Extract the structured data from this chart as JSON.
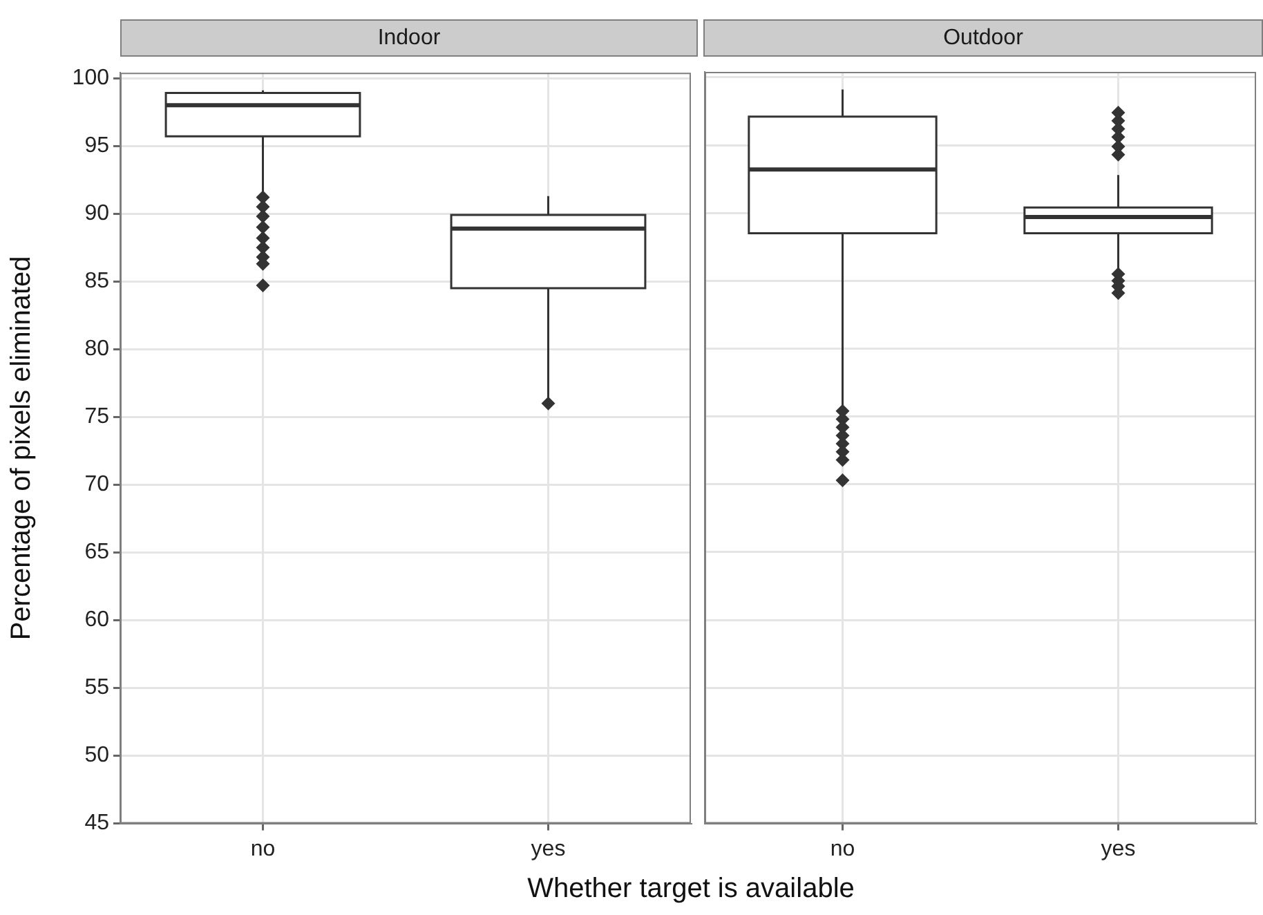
{
  "chart_data": [
    {
      "type": "box",
      "title": "Indoor",
      "xlabel": "Whether target is available",
      "ylabel": "Percentage of pixels eliminated",
      "categories": [
        "no",
        "yes"
      ],
      "boxes": [
        {
          "low": 91.3,
          "q1": 95.7,
          "median": 98.0,
          "q3": 98.9,
          "high": 99.1,
          "outliers": [
            91.2,
            90.5,
            89.8,
            89.0,
            88.2,
            87.5,
            86.8,
            86.3,
            84.7
          ]
        },
        {
          "low": 76.4,
          "q1": 84.5,
          "median": 88.9,
          "q3": 89.9,
          "high": 91.3,
          "outliers": [
            76.0
          ]
        }
      ],
      "ylim": [
        45,
        100.4
      ],
      "yticks": [
        45,
        50,
        55,
        60,
        65,
        70,
        75,
        80,
        85,
        90,
        95,
        100
      ],
      "grid": true
    },
    {
      "type": "box",
      "title": "Outdoor",
      "categories": [
        "no",
        "yes"
      ],
      "boxes": [
        {
          "low": 75.6,
          "q1": 88.5,
          "median": 93.2,
          "q3": 97.1,
          "high": 99.1,
          "outliers": [
            75.4,
            74.8,
            74.2,
            73.6,
            73.0,
            72.4,
            71.8,
            70.3
          ]
        },
        {
          "low": 85.8,
          "q1": 88.5,
          "median": 89.7,
          "q3": 90.4,
          "high": 92.8,
          "outliers": [
            97.4,
            96.8,
            96.2,
            95.6,
            94.9,
            94.3,
            85.5,
            85.0,
            84.6,
            84.1
          ]
        }
      ],
      "ylim": [
        45,
        100.4
      ],
      "yticks": [
        45,
        50,
        55,
        60,
        65,
        70,
        75,
        80,
        85,
        90,
        95,
        100
      ],
      "grid": true,
      "tick_labels": "x"
    }
  ]
}
